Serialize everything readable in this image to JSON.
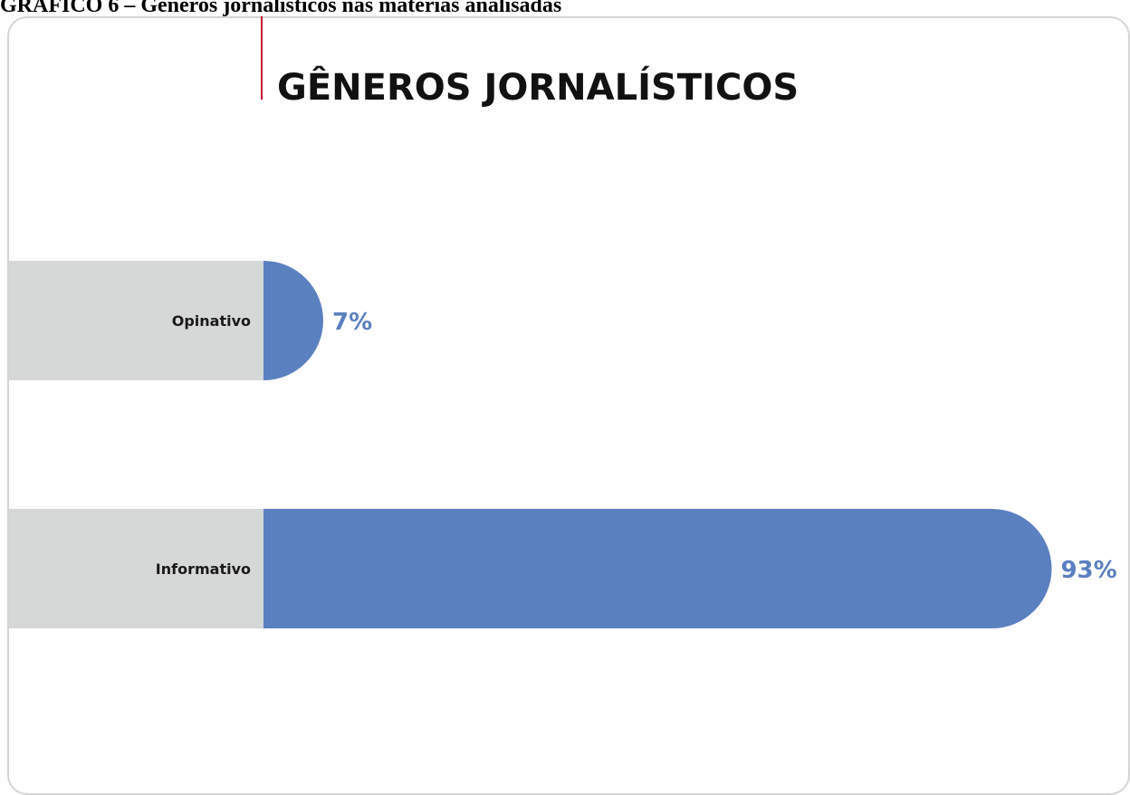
{
  "caption": "GRÁFICO 6 – Gêneros jornalísticos nas matérias analisadas",
  "chart_data": {
    "type": "bar",
    "orientation": "horizontal",
    "title": "GÊNEROS JORNALÍSTICOS",
    "categories": [
      "Opinativo",
      "Informativo"
    ],
    "values": [
      7,
      93
    ],
    "value_labels": [
      "7%",
      "93%"
    ],
    "xlim": [
      0,
      100
    ],
    "grid": false,
    "legend": "none",
    "colors": {
      "bar": "#5b80c0",
      "label_panel": "#d6d8d7",
      "value_text": "#5b80c0",
      "title_rule": "#c8102e"
    }
  }
}
